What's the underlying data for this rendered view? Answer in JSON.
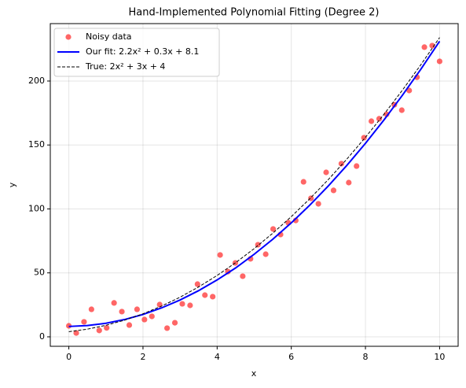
{
  "chart_data": {
    "type": "line",
    "title": "Hand-Implemented Polynomial Fitting (Degree 2)",
    "x_label": "x",
    "y_label": "y",
    "xlim": [
      -0.5,
      10.5
    ],
    "ylim": [
      -7.4,
      244.9
    ],
    "xticks": [
      0,
      2,
      4,
      6,
      8,
      10
    ],
    "yticks": [
      0,
      50,
      100,
      150,
      200
    ],
    "grid": true,
    "legend": "upper-left",
    "series": [
      {
        "name": "Noisy data",
        "style": "markers",
        "color": "#ff0000",
        "x": [
          0,
          0.2,
          0.41,
          0.61,
          0.82,
          1.02,
          1.22,
          1.43,
          1.63,
          1.84,
          2.04,
          2.24,
          2.45,
          2.65,
          2.86,
          3.06,
          3.27,
          3.47,
          3.67,
          3.88,
          4.08,
          4.29,
          4.49,
          4.69,
          4.9,
          5.1,
          5.31,
          5.51,
          5.71,
          5.92,
          6.12,
          6.33,
          6.53,
          6.73,
          6.94,
          7.14,
          7.35,
          7.55,
          7.76,
          7.96,
          8.16,
          8.37,
          8.57,
          8.78,
          8.98,
          9.18,
          9.39,
          9.59,
          9.8,
          10
        ],
        "values": [
          8.6,
          3,
          11.7,
          21.5,
          5,
          7,
          26.5,
          19.7,
          9.2,
          21.5,
          13.5,
          16,
          25.2,
          6.8,
          11,
          25.8,
          24.6,
          41.2,
          32.6,
          31.4,
          64,
          51,
          57.8,
          47.4,
          61,
          72,
          64.6,
          84.3,
          80,
          89.2,
          91,
          121.2,
          108.3,
          104,
          128.6,
          114.5,
          135.4,
          120.6,
          133.5,
          155.7,
          168.6,
          170.5,
          174,
          181.5,
          177.2,
          192.6,
          203,
          226.5,
          227.7,
          215.4
        ]
      },
      {
        "name": "Our fit: 2.2x² + 0.3x + 8.1",
        "style": "solid",
        "color": "#0000ff",
        "x": [
          0,
          0.5,
          1,
          1.5,
          2,
          2.5,
          3,
          3.5,
          4,
          4.5,
          5,
          5.5,
          6,
          6.5,
          7,
          7.5,
          8,
          8.5,
          9,
          9.5,
          10
        ],
        "values": [
          8.1,
          8.8,
          10.6,
          13.5,
          17.5,
          22.6,
          28.8,
          36.1,
          44.5,
          53.9,
          64.6,
          76.3,
          89.1,
          103.0,
          118.0,
          134.1,
          151.3,
          169.6,
          189.0,
          209.5,
          231.1
        ]
      },
      {
        "name": "True: 2x² + 3x + 4",
        "style": "dashed",
        "color": "#000000",
        "x": [
          0,
          0.5,
          1,
          1.5,
          2,
          2.5,
          3,
          3.5,
          4,
          4.5,
          5,
          5.5,
          6,
          6.5,
          7,
          7.5,
          8,
          8.5,
          9,
          9.5,
          10
        ],
        "values": [
          4,
          6,
          9,
          13,
          18,
          24,
          31,
          39,
          48,
          58,
          69,
          81,
          94,
          108,
          123,
          139,
          156,
          174,
          193,
          213,
          234
        ]
      }
    ]
  }
}
